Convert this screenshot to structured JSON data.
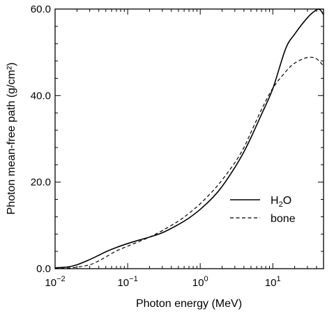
{
  "chart_data": {
    "type": "line",
    "xlabel": "Photon energy (MeV)",
    "ylabel": "Photon mean-free path (g/cm²)",
    "xscale": "log",
    "xlim": [
      0.01,
      50
    ],
    "ylim": [
      0,
      60
    ],
    "grid": false,
    "legend_position": "center-right",
    "y_ticks": [
      {
        "value": 0,
        "label": "0.0"
      },
      {
        "value": 20,
        "label": "20.0"
      },
      {
        "value": 40,
        "label": "40.0"
      },
      {
        "value": 60,
        "label": "60.0"
      }
    ],
    "x_ticks": [
      {
        "value": 0.01,
        "base": "10",
        "exp": "−2"
      },
      {
        "value": 0.1,
        "base": "10",
        "exp": "−1"
      },
      {
        "value": 1,
        "base": "10",
        "exp": "0"
      },
      {
        "value": 10,
        "base": "10",
        "exp": "1"
      }
    ],
    "series": [
      {
        "name": "H2O",
        "legend_label": {
          "base": "H",
          "sub": "2",
          "tail": "O"
        },
        "style": "solid",
        "color": "#000000",
        "points": [
          [
            0.01,
            0.2
          ],
          [
            0.015,
            0.4
          ],
          [
            0.02,
            0.9
          ],
          [
            0.03,
            2.1
          ],
          [
            0.04,
            3.1
          ],
          [
            0.05,
            3.9
          ],
          [
            0.07,
            4.9
          ],
          [
            0.1,
            5.8
          ],
          [
            0.15,
            6.7
          ],
          [
            0.2,
            7.3
          ],
          [
            0.3,
            8.3
          ],
          [
            0.5,
            10.2
          ],
          [
            0.7,
            11.7
          ],
          [
            1.0,
            13.7
          ],
          [
            1.5,
            16.5
          ],
          [
            2.0,
            19.0
          ],
          [
            3.0,
            23.4
          ],
          [
            4.0,
            27.0
          ],
          [
            5.0,
            30.3
          ],
          [
            7.0,
            35.7
          ],
          [
            10.0,
            41.6
          ],
          [
            15.0,
            50.8
          ],
          [
            20.0,
            54.2
          ],
          [
            30.0,
            58.0
          ],
          [
            40.0,
            59.8
          ],
          [
            45.0,
            59.8
          ],
          [
            50.0,
            58.7
          ]
        ]
      },
      {
        "name": "bone",
        "style": "dashed",
        "color": "#000000",
        "points": [
          [
            0.01,
            0.05
          ],
          [
            0.015,
            0.15
          ],
          [
            0.02,
            0.35
          ],
          [
            0.03,
            0.9
          ],
          [
            0.04,
            1.8
          ],
          [
            0.05,
            2.7
          ],
          [
            0.07,
            4.1
          ],
          [
            0.1,
            5.2
          ],
          [
            0.15,
            6.4
          ],
          [
            0.2,
            7.3
          ],
          [
            0.3,
            8.8
          ],
          [
            0.5,
            11.0
          ],
          [
            0.7,
            12.8
          ],
          [
            1.0,
            15.0
          ],
          [
            1.5,
            18.0
          ],
          [
            2.0,
            20.5
          ],
          [
            3.0,
            24.5
          ],
          [
            4.0,
            28.0
          ],
          [
            5.0,
            31.5
          ],
          [
            7.0,
            36.8
          ],
          [
            10.0,
            41.7
          ],
          [
            15.0,
            45.5
          ],
          [
            20.0,
            47.5
          ],
          [
            30.0,
            48.8
          ],
          [
            40.0,
            48.5
          ],
          [
            50.0,
            46.8
          ]
        ]
      }
    ]
  }
}
